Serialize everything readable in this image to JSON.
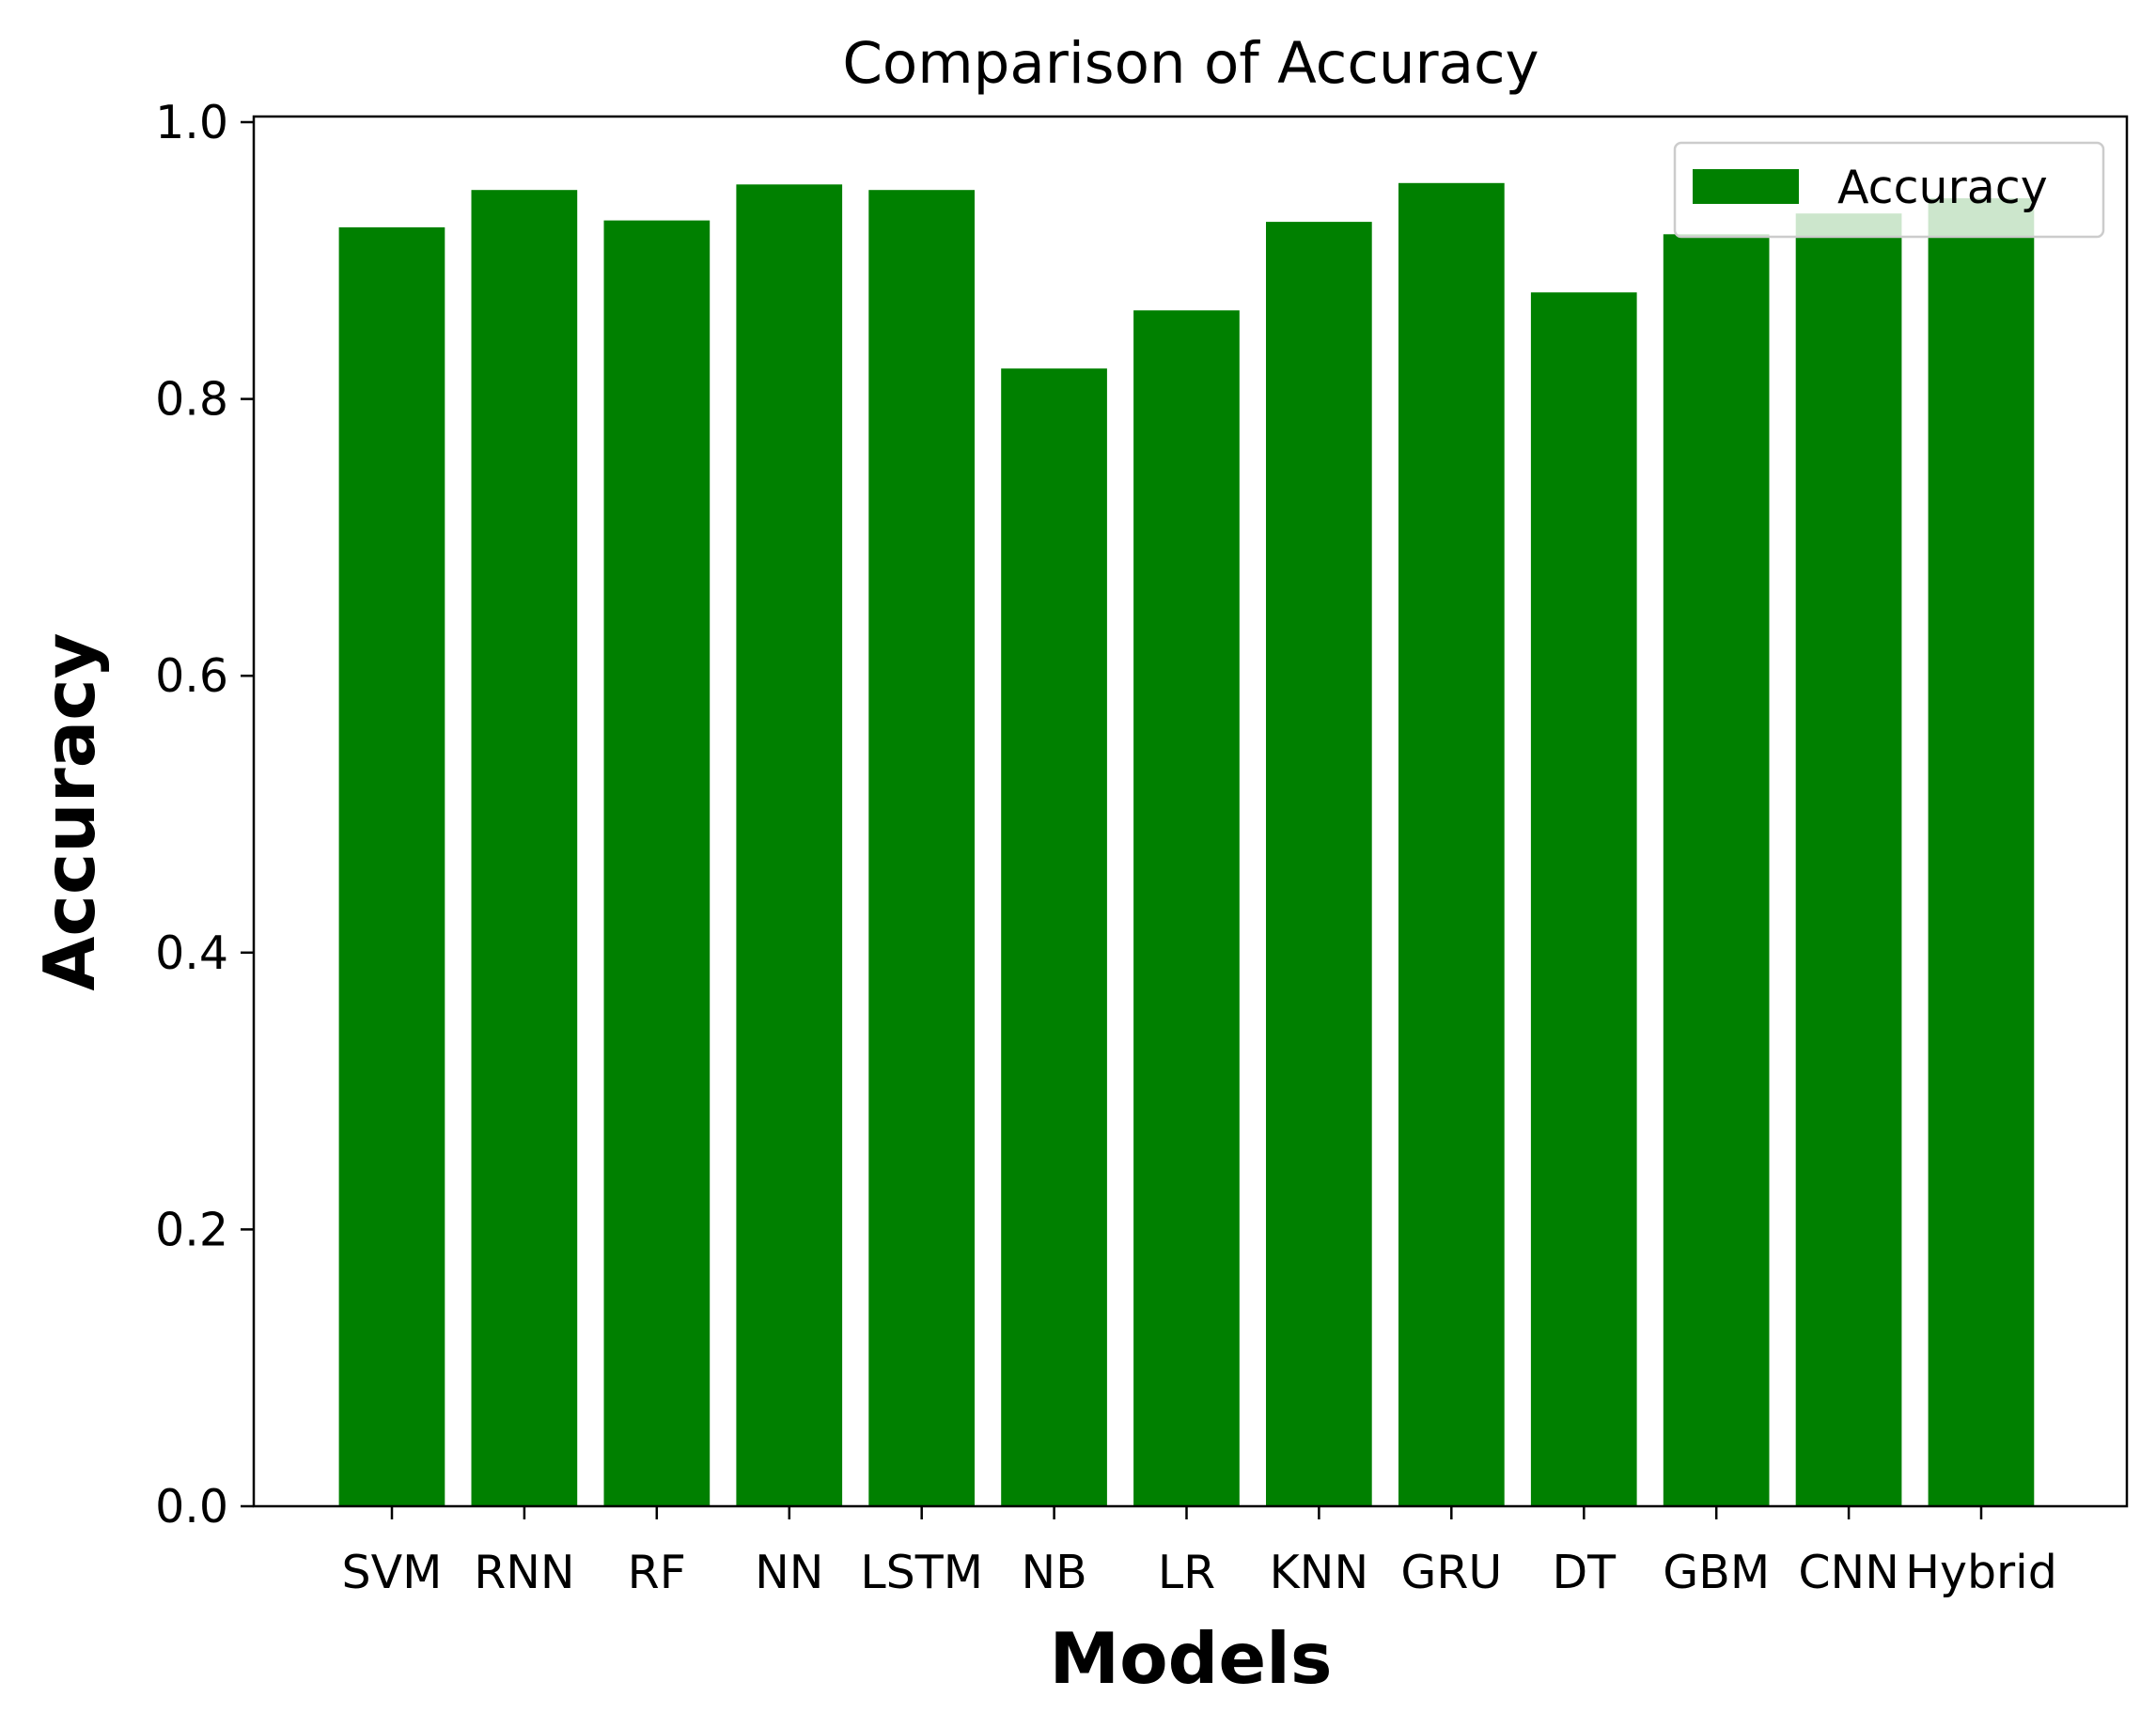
{
  "chart_data": {
    "type": "bar",
    "title": "Comparison of Accuracy",
    "xlabel": "Models",
    "ylabel": "Accuracy",
    "categories": [
      "SVM",
      "RNN",
      "RF",
      "NN",
      "LSTM",
      "NB",
      "LR",
      "KNN",
      "GRU",
      "DT",
      "GBM",
      "CNN",
      "Hybrid"
    ],
    "series": [
      {
        "name": "Accuracy",
        "color": "#008000",
        "values": [
          0.924,
          0.951,
          0.929,
          0.955,
          0.951,
          0.822,
          0.864,
          0.928,
          0.956,
          0.877,
          0.919,
          0.934,
          0.945
        ]
      }
    ],
    "ylim": [
      0.0,
      1.0
    ],
    "yticks": [
      "0.0",
      "0.2",
      "0.4",
      "0.6",
      "0.8",
      "1.0"
    ],
    "grid": false,
    "legend": "top-right"
  }
}
